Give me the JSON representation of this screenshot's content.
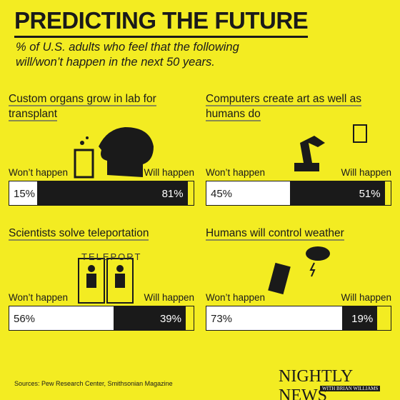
{
  "header": {
    "title": "PREDICTING THE FUTURE",
    "subtitle": "% of U.S. adults who feel that the following will/won’t happen in the next 50 years."
  },
  "chart_data": [
    {
      "type": "bar",
      "title": "Custom organs grow in lab for transplant",
      "categories": [
        "Won’t happen",
        "Will happen"
      ],
      "values": [
        15,
        81
      ],
      "value_labels": [
        "15%",
        "81%"
      ],
      "colors": [
        "#ffffff",
        "#1a1a1a"
      ],
      "xlim": [
        0,
        100
      ]
    },
    {
      "type": "bar",
      "title": "Computers create art as well as humans do",
      "categories": [
        "Won’t happen",
        "Will happen"
      ],
      "values": [
        45,
        51
      ],
      "value_labels": [
        "45%",
        "51%"
      ],
      "colors": [
        "#ffffff",
        "#1a1a1a"
      ],
      "xlim": [
        0,
        100
      ]
    },
    {
      "type": "bar",
      "title": "Scientists solve teleportation",
      "annotations": [
        "TELEPORT"
      ],
      "categories": [
        "Won’t happen",
        "Will happen"
      ],
      "values": [
        56,
        39
      ],
      "value_labels": [
        "56%",
        "39%"
      ],
      "colors": [
        "#ffffff",
        "#1a1a1a"
      ],
      "xlim": [
        0,
        100
      ]
    },
    {
      "type": "bar",
      "title": "Humans will control weather",
      "categories": [
        "Won’t happen",
        "Will happen"
      ],
      "values": [
        73,
        19
      ],
      "value_labels": [
        "73%",
        "19%"
      ],
      "colors": [
        "#ffffff",
        "#1a1a1a"
      ],
      "xlim": [
        0,
        100
      ]
    }
  ],
  "footer": {
    "source": "Sources: Pew Research Center, Smithsonian Magazine",
    "brand": "NIGHTLY NEWS",
    "brand_sub": "WITH BRIAN WILLIAMS"
  }
}
